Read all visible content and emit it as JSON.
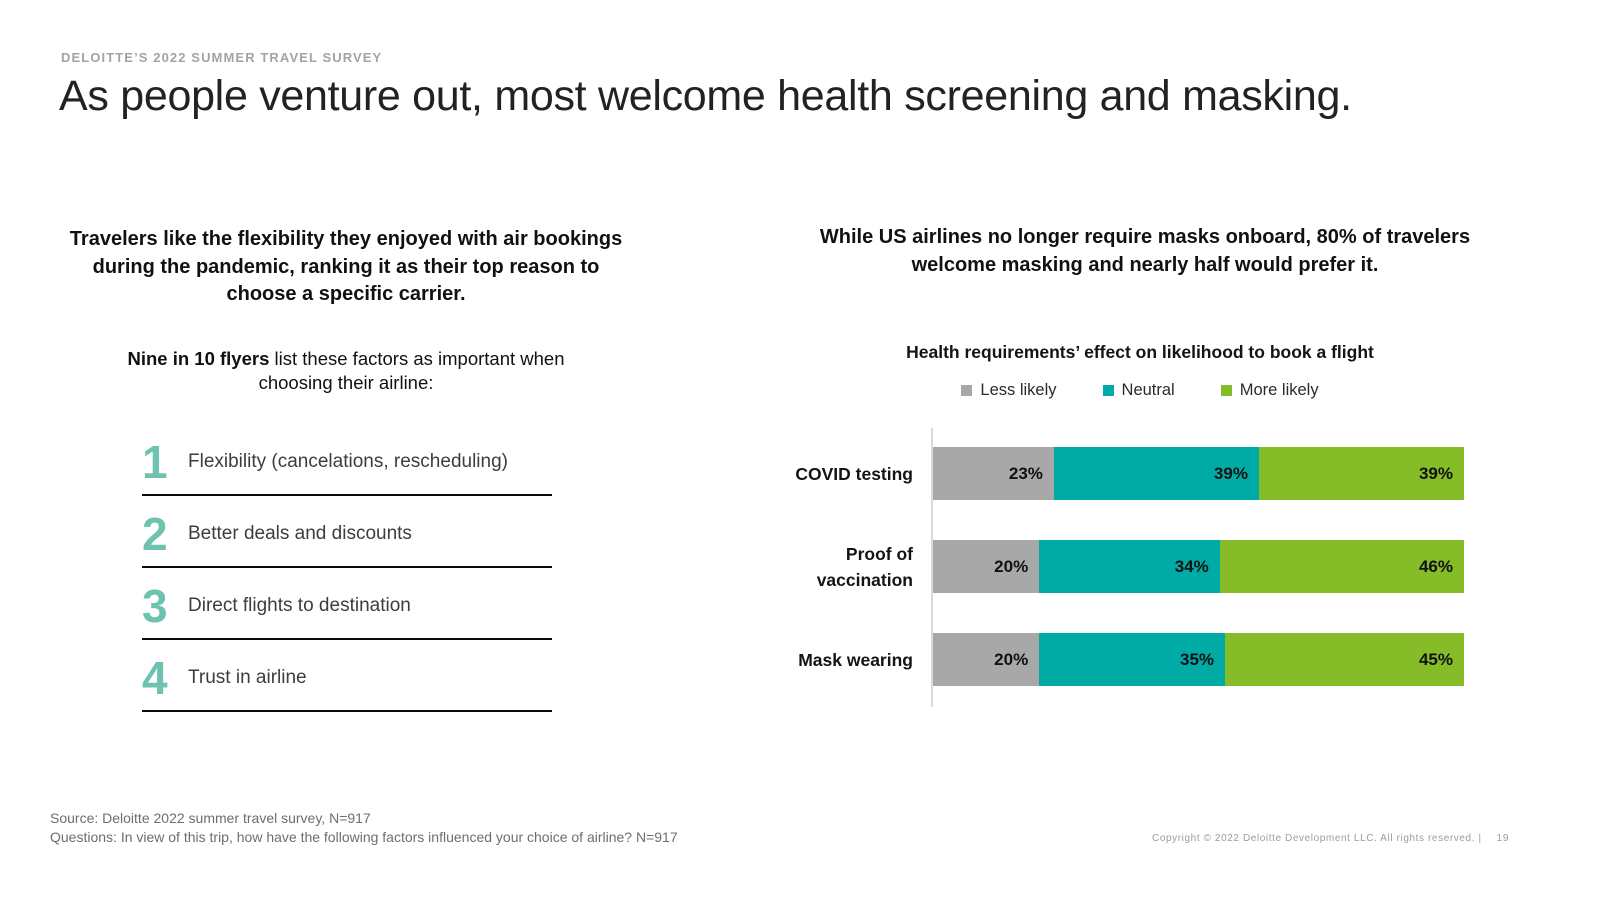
{
  "slide": {
    "eyebrow": "DELOITTE’S 2022 SUMMER TRAVEL SURVEY",
    "title": "As people venture out, most welcome health screening and masking.",
    "page_number": "19",
    "copyright": "Copyright © 2022 Deloitte Development LLC. All rights reserved.  |"
  },
  "left": {
    "intro": "Travelers like the flexibility they enjoyed with air bookings during the pandemic, ranking it as their top reason to choose a specific carrier.",
    "factors_lead_bold": "Nine in 10 flyers",
    "factors_rest": " list these factors as important when choosing their airline:",
    "accent_color": "#6fc2b0",
    "list": {
      "items": [
        {
          "number": "1",
          "text": "Flexibility (cancelations, rescheduling)"
        },
        {
          "number": "2",
          "text": "Better deals and discounts"
        },
        {
          "number": "3",
          "text": "Direct flights to destination"
        },
        {
          "number": "4",
          "text": "Trust in airline"
        }
      ]
    }
  },
  "right": {
    "intro": "While US airlines no longer require masks onboard, 80% of travelers welcome masking and nearly half would prefer it."
  },
  "chart_data": {
    "type": "bar",
    "orientation": "horizontal",
    "stacked": true,
    "title": "Health requirements’ effect on likelihood to book a flight",
    "categories": [
      "COVID testing",
      "Proof of vaccination",
      "Mask wearing"
    ],
    "series": [
      {
        "name": "Less likely",
        "color": "#a8a8a8",
        "values": [
          23,
          20,
          20
        ]
      },
      {
        "name": "Neutral",
        "color": "#00aba6",
        "values": [
          39,
          34,
          35
        ]
      },
      {
        "name": "More likely",
        "color": "#85bc28",
        "values": [
          39,
          46,
          45
        ]
      }
    ],
    "value_suffix": "%",
    "legend_position": "top",
    "xlim": [
      0,
      100
    ],
    "grid": false
  },
  "footer": {
    "source": "Source: Deloitte 2022 summer travel survey, N=917",
    "questions": "Questions: In view of this trip, how have the following factors influenced your choice of airline? N=917"
  }
}
